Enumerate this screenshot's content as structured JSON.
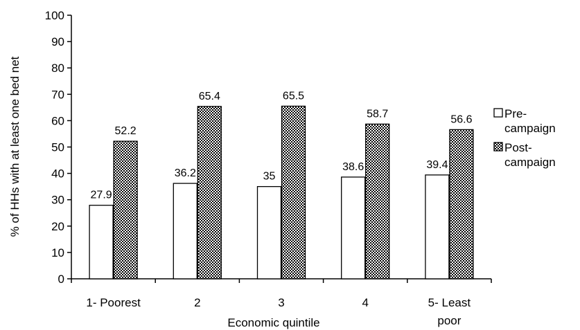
{
  "chart_data": {
    "type": "bar",
    "title": "",
    "xlabel": "Economic quintile",
    "ylabel": "% of HHs with at least one bed net",
    "ylim": [
      0,
      100
    ],
    "yticks": [
      0,
      10,
      20,
      30,
      40,
      50,
      60,
      70,
      80,
      90,
      100
    ],
    "grid": false,
    "legend_position": "right",
    "categories": [
      [
        "1- Poorest"
      ],
      [
        "2"
      ],
      [
        "3"
      ],
      [
        "4"
      ],
      [
        "5- Least",
        "poor"
      ]
    ],
    "series": [
      {
        "name": [
          "Pre-",
          "campaign"
        ],
        "pattern": "solid-white",
        "values": [
          27.9,
          36.2,
          35,
          38.6,
          39.4
        ],
        "labels": [
          "27.9",
          "36.2",
          "35",
          "38.6",
          "39.4"
        ]
      },
      {
        "name": [
          "Post-",
          "campaign"
        ],
        "pattern": "dotted",
        "values": [
          52.2,
          65.4,
          65.5,
          58.7,
          56.6
        ],
        "labels": [
          "52.2",
          "65.4",
          "65.5",
          "58.7",
          "56.6"
        ]
      }
    ]
  }
}
